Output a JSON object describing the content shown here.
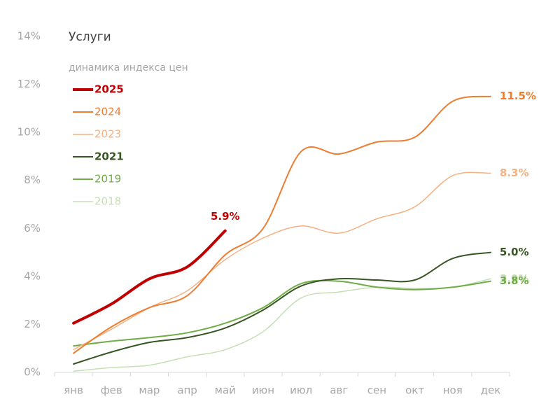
{
  "chart_data": {
    "type": "line",
    "title": "Услуги",
    "subtitle": "динамика индекса цен",
    "categories": [
      "янв",
      "фев",
      "мар",
      "апр",
      "май",
      "июн",
      "июл",
      "авг",
      "сен",
      "окт",
      "ноя",
      "дек"
    ],
    "ylim": [
      0,
      14
    ],
    "yticks": [
      {
        "value": 0,
        "label": "0%"
      },
      {
        "value": 2,
        "label": "2%"
      },
      {
        "value": 4,
        "label": "4%"
      },
      {
        "value": 6,
        "label": "6%"
      },
      {
        "value": 8,
        "label": "8%"
      },
      {
        "value": 10,
        "label": "10%"
      },
      {
        "value": 12,
        "label": "12%"
      },
      {
        "value": 14,
        "label": "14%"
      }
    ],
    "grid": false,
    "legend": "top-left",
    "series": [
      {
        "name": "2025",
        "color": "#c00000",
        "line_width": 4,
        "bold": true,
        "values": [
          2.05,
          2.85,
          3.9,
          4.4,
          5.9,
          null,
          null,
          null,
          null,
          null,
          null,
          null
        ],
        "value_labels": [
          null,
          null,
          null,
          null,
          "5.9%",
          null,
          null,
          null,
          null,
          null,
          null,
          null
        ]
      },
      {
        "name": "2024",
        "color": "#ed7d31",
        "line_width": 2,
        "bold": false,
        "values": [
          0.8,
          1.9,
          2.7,
          3.2,
          4.9,
          6.0,
          9.2,
          9.1,
          9.6,
          9.8,
          11.3,
          11.5
        ],
        "value_labels": [
          null,
          null,
          null,
          null,
          null,
          null,
          null,
          null,
          null,
          null,
          null,
          "11.5%"
        ]
      },
      {
        "name": "2023",
        "color": "#f4b183",
        "line_width": 1.5,
        "bold": false,
        "values": [
          0.95,
          1.8,
          2.7,
          3.4,
          4.7,
          5.6,
          6.1,
          5.8,
          6.4,
          6.9,
          8.2,
          8.3
        ],
        "value_labels": [
          null,
          null,
          null,
          null,
          null,
          null,
          null,
          null,
          null,
          null,
          null,
          "8.3%"
        ]
      },
      {
        "name": "2021",
        "color": "#375623",
        "line_width": 2,
        "bold": true,
        "values": [
          0.35,
          0.85,
          1.25,
          1.45,
          1.85,
          2.6,
          3.6,
          3.9,
          3.85,
          3.85,
          4.75,
          5.0
        ],
        "value_labels": [
          null,
          null,
          null,
          null,
          null,
          null,
          null,
          null,
          null,
          null,
          null,
          "5.0%"
        ]
      },
      {
        "name": "2019",
        "color": "#70ad47",
        "line_width": 2,
        "bold": false,
        "values": [
          1.1,
          1.3,
          1.45,
          1.65,
          2.05,
          2.7,
          3.7,
          3.8,
          3.55,
          3.45,
          3.55,
          3.8
        ],
        "value_labels": [
          null,
          null,
          null,
          null,
          null,
          null,
          null,
          null,
          null,
          null,
          null,
          "3.8%"
        ]
      },
      {
        "name": "2018",
        "color": "#c5e0b4",
        "line_width": 1.5,
        "bold": false,
        "values": [
          0.05,
          0.2,
          0.3,
          0.65,
          0.95,
          1.7,
          3.1,
          3.35,
          3.55,
          3.5,
          3.55,
          3.9
        ],
        "value_labels": [
          null,
          null,
          null,
          null,
          null,
          null,
          null,
          null,
          null,
          null,
          null,
          "3.9%"
        ]
      }
    ]
  }
}
